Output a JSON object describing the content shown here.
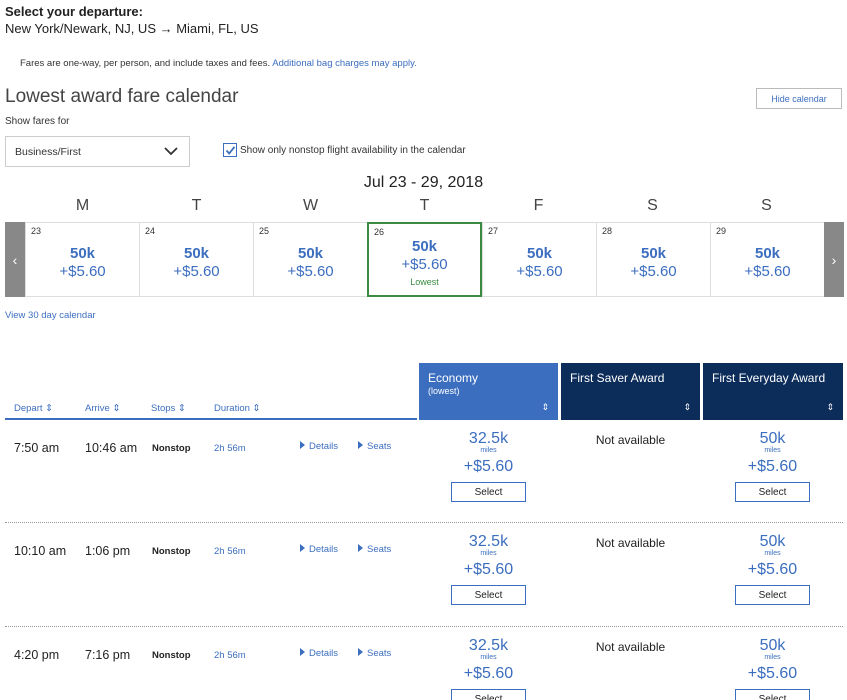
{
  "header": {
    "title": "Select your departure:",
    "route": "New York/Newark, NJ, US → Miami, FL, US"
  },
  "fares_note": {
    "text": "Fares are one-way, per person, and include taxes and fees.",
    "link": "Additional bag charges may apply."
  },
  "calendar": {
    "title": "Lowest award fare calendar",
    "hide_label": "Hide calendar",
    "show_fares_for": "Show fares for",
    "cabin_selected": "Business/First",
    "nonstop_label": "Show only nonstop flight availability in the calendar",
    "nonstop_checked": true,
    "week_range": "Jul 23 - 29, 2018",
    "dow": [
      "M",
      "T",
      "W",
      "T",
      "F",
      "S",
      "S"
    ],
    "prev_arrow": "‹",
    "next_arrow": "›",
    "days": [
      {
        "day": "23",
        "miles": "50k",
        "tax": "+$5.60"
      },
      {
        "day": "24",
        "miles": "50k",
        "tax": "+$5.60"
      },
      {
        "day": "25",
        "miles": "50k",
        "tax": "+$5.60"
      },
      {
        "day": "26",
        "miles": "50k",
        "tax": "+$5.60",
        "label": "Lowest"
      },
      {
        "day": "27",
        "miles": "50k",
        "tax": "+$5.60"
      },
      {
        "day": "28",
        "miles": "50k",
        "tax": "+$5.60"
      },
      {
        "day": "29",
        "miles": "50k",
        "tax": "+$5.60"
      }
    ],
    "view30": "View 30 day calendar"
  },
  "columns": {
    "depart": "Depart ⇕",
    "arrive": "Arrive ⇕",
    "stops": "Stops ⇕",
    "duration": "Duration ⇕",
    "economy": "Economy",
    "economy_sub": "(lowest)",
    "saver": "First Saver Award",
    "everyday": "First Everyday Award",
    "sort_glyph": "⇕"
  },
  "flights": [
    {
      "depart": "7:50 am",
      "arrive": "10:46 am",
      "stops": "Nonstop",
      "duration": "2h 56m",
      "details": "Details",
      "seats": "Seats",
      "economy": {
        "miles": "32.5k",
        "unit": "miles",
        "tax": "+$5.60",
        "select": "Select"
      },
      "saver": "Not available",
      "everyday": {
        "miles": "50k",
        "unit": "miles",
        "tax": "+$5.60",
        "select": "Select"
      }
    },
    {
      "depart": "10:10 am",
      "arrive": "1:06 pm",
      "stops": "Nonstop",
      "duration": "2h 56m",
      "details": "Details",
      "seats": "Seats",
      "economy": {
        "miles": "32.5k",
        "unit": "miles",
        "tax": "+$5.60",
        "select": "Select"
      },
      "saver": "Not available",
      "everyday": {
        "miles": "50k",
        "unit": "miles",
        "tax": "+$5.60",
        "select": "Select"
      }
    },
    {
      "depart": "4:20 pm",
      "arrive": "7:16 pm",
      "stops": "Nonstop",
      "duration": "2h 56m",
      "details": "Details",
      "seats": "Seats",
      "economy": {
        "miles": "32.5k",
        "unit": "miles",
        "tax": "+$5.60",
        "select": "Select"
      },
      "saver": "Not available",
      "everyday": {
        "miles": "50k",
        "unit": "miles",
        "tax": "+$5.60",
        "select": "Select"
      }
    }
  ],
  "colors": {
    "link_blue": "#3c6ebf",
    "navy": "#0c2c5a",
    "lowest_green": "#3a8a3f"
  }
}
